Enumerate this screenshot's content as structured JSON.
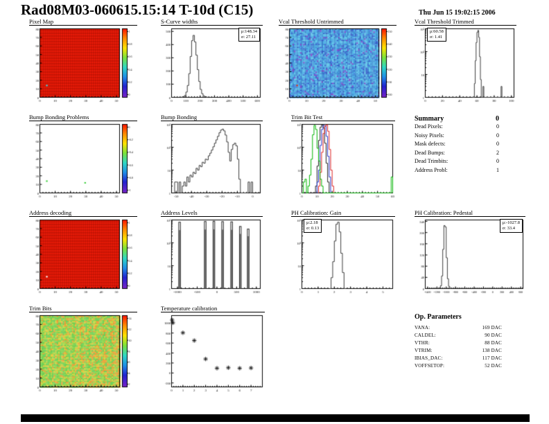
{
  "page": {
    "title": "Rad08M03-060615.15:14 T-10d (C15)",
    "timestamp": "Thu Jun 15 19:02:15 2006"
  },
  "summary": {
    "heading": "Summary",
    "value": "0",
    "rows": [
      {
        "label": "Dead Pixels:",
        "value": "0"
      },
      {
        "label": "Noisy Pixels:",
        "value": "0"
      },
      {
        "label": "Mask defects:",
        "value": "0"
      },
      {
        "label": "Dead Bumps:",
        "value": "2"
      },
      {
        "label": "Dead Trimbits:",
        "value": "0"
      },
      {
        "label": "Address Probl:",
        "value": "1"
      }
    ]
  },
  "op_parameters": {
    "heading": "Op. Parameters",
    "rows": [
      {
        "label": "VANA:",
        "value": "169 DAC"
      },
      {
        "label": "CALDEL:",
        "value": "90 DAC"
      },
      {
        "label": "VTHR:",
        "value": "88 DAC"
      },
      {
        "label": "VTRIM:",
        "value": "138 DAC"
      },
      {
        "label": "IBIAS_DAC:",
        "value": "117 DAC"
      },
      {
        "label": "VOFFSETOP:",
        "value": "52 DAC"
      }
    ]
  },
  "chart_data": [
    {
      "id": "pixel-map",
      "type": "heatmap",
      "title": "Pixel Map",
      "style": "red-grid",
      "cols": 52,
      "rows": 80,
      "xlim": [
        0,
        52
      ],
      "xticks": [
        "0",
        "10",
        "20",
        "30",
        "40",
        "50"
      ],
      "ylim": [
        0,
        80
      ],
      "yticks": [
        "0",
        "10",
        "20",
        "30",
        "40",
        "50",
        "60",
        "70",
        "80"
      ],
      "points": [
        {
          "x": 4,
          "y": 13,
          "color": "#3fd9e8"
        }
      ],
      "colorbar_ticks": [
        "1",
        "0.8",
        "0.6",
        "0.4",
        "0.2",
        "0"
      ]
    },
    {
      "id": "scurve-widths",
      "type": "histogram",
      "title": "S-Curve widths",
      "yscale": "linear",
      "ylim": [
        0,
        520
      ],
      "yticks": [
        "0",
        "100",
        "200",
        "300",
        "400",
        "500"
      ],
      "xlim": [
        0,
        620
      ],
      "xticks": [
        "0",
        "100",
        "200",
        "300",
        "400",
        "500",
        "600"
      ],
      "stats_mu": "μ:148.34",
      "stats_sigma": "σ: 27.11",
      "series": [
        {
          "color": "#3a3a3a",
          "x0": 70,
          "dx": 10,
          "values": [
            2,
            5,
            14,
            40,
            90,
            180,
            310,
            430,
            470,
            420,
            320,
            210,
            120,
            60,
            28,
            12,
            5,
            2
          ]
        }
      ]
    },
    {
      "id": "vcal-untrimmed",
      "type": "heatmap",
      "title": "Vcal Threshold Untrimmed",
      "style": "blue-noise",
      "cols": 52,
      "rows": 80,
      "xlim": [
        0,
        52
      ],
      "xticks": [
        "0",
        "10",
        "20",
        "30",
        "40",
        "50"
      ],
      "ylim": [
        0,
        80
      ],
      "yticks": [
        "0",
        "10",
        "20",
        "30",
        "40",
        "50",
        "60",
        "70",
        "80"
      ],
      "points": [
        {
          "x": 4,
          "y": 13,
          "color": "#ee3311"
        }
      ],
      "colorbar_ticks": [
        "150",
        "140",
        "130",
        "120",
        "110",
        "100"
      ]
    },
    {
      "id": "vcal-trimmed",
      "type": "histogram",
      "title": "Vcal Threshold Trimmed",
      "yscale": "log",
      "yticks": [
        "1",
        "10",
        "10²",
        "10³"
      ],
      "xlim": [
        0,
        103
      ],
      "xticks": [
        "0",
        "20",
        "40",
        "60",
        "80",
        "100"
      ],
      "stats_mu": "μ:60.58",
      "stats_sigma": "σ: 1.41",
      "series": [
        {
          "color": "#3a3a3a",
          "x0": 55,
          "dx": 1,
          "values": [
            1,
            0,
            4,
            40,
            250,
            700,
            850,
            420,
            60,
            6,
            0,
            0,
            3,
            0,
            0,
            0,
            0,
            0,
            0,
            0,
            0,
            0,
            0,
            0,
            0,
            0,
            0,
            0,
            0,
            0,
            0,
            0,
            0,
            3,
            0,
            0,
            0,
            0,
            0,
            0,
            0,
            0,
            1
          ]
        }
      ]
    },
    {
      "id": "bump-problems",
      "type": "heatmap",
      "title": "Bump Bonding Problems",
      "style": "empty",
      "cols": 52,
      "rows": 80,
      "xlim": [
        0,
        52
      ],
      "xticks": [
        "0",
        "10",
        "20",
        "30",
        "40",
        "50"
      ],
      "ylim": [
        0,
        80
      ],
      "yticks": [
        "0",
        "10",
        "20",
        "30",
        "40",
        "50",
        "60",
        "70",
        "80"
      ],
      "points": [
        {
          "x": 4,
          "y": 13,
          "color": "#3ecf3e"
        },
        {
          "x": 29,
          "y": 11,
          "color": "#3ecf3e"
        }
      ],
      "colorbar_ticks": [
        "0",
        "-0.2",
        "-0.4",
        "-0.6",
        "-0.8",
        "-1"
      ]
    },
    {
      "id": "bump-bonding",
      "type": "histogram",
      "title": "Bump Bonding",
      "yscale": "log",
      "yticks": [
        "1",
        "10",
        "10²",
        "10³"
      ],
      "xlim": [
        -53,
        5
      ],
      "xticks": [
        "-50",
        "-40",
        "-30",
        "-20",
        "-10",
        "0"
      ],
      "series": [
        {
          "color": "#3a3a3a",
          "x0": -51,
          "dx": 1,
          "values": [
            3,
            3,
            0,
            3,
            0,
            2,
            3,
            2,
            5,
            3,
            6,
            5,
            8,
            7,
            12,
            10,
            16,
            14,
            22,
            20,
            30,
            28,
            42,
            55,
            75,
            105,
            150,
            210,
            300,
            430,
            560,
            620,
            520,
            340,
            170,
            60,
            25,
            80,
            130,
            150,
            115,
            30,
            4,
            0,
            0,
            0,
            0,
            0,
            3,
            0,
            3
          ]
        }
      ]
    },
    {
      "id": "trimbit-test",
      "type": "histogram",
      "title": "Trim Bit Test",
      "yscale": "log",
      "yticks": [
        "1",
        "10",
        "10²",
        "10³"
      ],
      "xlim": [
        0,
        60
      ],
      "xticks": [
        "0",
        "10",
        "20",
        "30",
        "40",
        "50",
        "60"
      ],
      "series": [
        {
          "color": "#222222",
          "x0": 9,
          "dx": 1,
          "values": [
            2,
            15,
            200,
            750,
            950,
            700,
            150,
            20,
            3
          ]
        },
        {
          "color": "#2233cc",
          "x0": 10,
          "dx": 1,
          "values": [
            3,
            10,
            120,
            600,
            900,
            850,
            300,
            40,
            5
          ]
        },
        {
          "color": "#dd2222",
          "x0": 11,
          "dx": 1,
          "values": [
            2,
            8,
            60,
            400,
            850,
            950,
            500,
            80,
            10,
            2
          ]
        },
        {
          "color": "#00b400",
          "x0": 0,
          "dx": 1,
          "values": [
            0,
            3,
            4,
            0,
            2,
            6,
            30,
            350,
            900,
            600,
            90,
            25,
            4,
            2,
            0,
            0,
            0,
            0,
            0,
            0,
            0,
            0,
            0,
            0,
            0,
            0,
            0,
            0,
            0,
            0,
            0,
            0,
            0,
            0,
            0,
            0,
            0,
            0,
            0,
            0,
            0,
            0,
            0,
            0,
            0,
            0,
            0,
            0,
            0,
            0,
            0,
            0,
            0,
            0,
            0,
            0,
            0,
            0,
            0,
            5
          ]
        }
      ]
    },
    {
      "id": "addr-decoding",
      "type": "heatmap",
      "title": "Address decoding",
      "style": "red-grid",
      "cols": 52,
      "rows": 80,
      "xlim": [
        0,
        52
      ],
      "xticks": [
        "0",
        "10",
        "20",
        "30",
        "40",
        "50"
      ],
      "ylim": [
        0,
        80
      ],
      "yticks": [
        "0",
        "10",
        "20",
        "30",
        "40",
        "50",
        "60",
        "70",
        "80"
      ],
      "points": [
        {
          "x": 4,
          "y": 13,
          "color": "#ffffff"
        }
      ],
      "colorbar_ticks": [
        "1",
        "0.8",
        "0.6",
        "0.4",
        "0.2",
        "0"
      ]
    },
    {
      "id": "addr-levels",
      "type": "spikes",
      "title": "Address Levels",
      "yscale": "log",
      "yticks": [
        "1",
        "10",
        "10²",
        "10³"
      ],
      "xlim": [
        -1150,
        1100
      ],
      "xticks": [
        "-1000",
        "-500",
        "0",
        "500",
        "1000"
      ],
      "spikes": [
        {
          "x": -950,
          "v": 800
        },
        {
          "x": -300,
          "v": 860
        },
        {
          "x": -80,
          "v": 880
        },
        {
          "x": 140,
          "v": 850
        },
        {
          "x": 370,
          "v": 830
        },
        {
          "x": 590,
          "v": 520
        },
        {
          "x": 790,
          "v": 400
        }
      ]
    },
    {
      "id": "ph-gain",
      "type": "histogram",
      "title": "PH Calibration: Gain",
      "yscale": "log",
      "yticks": [
        "1",
        "10",
        "10²",
        "10³"
      ],
      "xlim": [
        0,
        5.6
      ],
      "xticks": [
        "0",
        "1",
        "2",
        "3",
        "4",
        "5"
      ],
      "stats_mu": "μ:2.18",
      "stats_sigma": "σ: 0.13",
      "series": [
        {
          "color": "#3a3a3a",
          "x0": 1.7,
          "dx": 0.1,
          "values": [
            1,
            3,
            15,
            120,
            650,
            800,
            300,
            35,
            5,
            1
          ]
        }
      ]
    },
    {
      "id": "ph-pedestal",
      "type": "histogram",
      "title": "PH Calibration: Pedestal",
      "yscale": "linear",
      "ylim": [
        0,
        245
      ],
      "yticks": [
        "0",
        "40",
        "80",
        "120",
        "160",
        "200",
        "240"
      ],
      "xlim": [
        -1450,
        650
      ],
      "xticks": [
        "-1400",
        "-1200",
        "-1000",
        "-800",
        "-600",
        "-400",
        "-200",
        "0",
        "200",
        "400",
        "600"
      ],
      "stats_mu": "μ:-1027.8",
      "stats_sigma": "σ: 33.4",
      "series": [
        {
          "color": "#3a3a3a",
          "x0": -1150,
          "dx": 25,
          "values": [
            2,
            10,
            45,
            140,
            225,
            220,
            110,
            35,
            8,
            1
          ]
        }
      ]
    },
    {
      "id": "trim-bits",
      "type": "heatmap",
      "title": "Trim Bits",
      "style": "trim-noise",
      "cols": 52,
      "rows": 80,
      "xlim": [
        0,
        52
      ],
      "xticks": [
        "0",
        "10",
        "20",
        "30",
        "40",
        "50"
      ],
      "ylim": [
        0,
        80
      ],
      "yticks": [
        "0",
        "10",
        "20",
        "30",
        "40",
        "50",
        "60",
        "70",
        "80"
      ],
      "points": [],
      "colorbar_ticks": [
        "14",
        "12",
        "10",
        "8",
        "6",
        "4",
        "2"
      ]
    },
    {
      "id": "temp-cal",
      "type": "scatter",
      "title": "Temperature calibration",
      "xlim": [
        0,
        8
      ],
      "xticks": [
        "0",
        "1",
        "2",
        "3",
        "4",
        "5",
        "6",
        "7"
      ],
      "ylim": [
        -280,
        1150
      ],
      "yticks": [
        "-200",
        "0",
        "200",
        "400",
        "600",
        "800",
        "1000"
      ],
      "points": [
        [
          0.05,
          1060
        ],
        [
          0.12,
          1005
        ],
        [
          1,
          805
        ],
        [
          2,
          650
        ],
        [
          3,
          280
        ],
        [
          4,
          95
        ],
        [
          5,
          105
        ],
        [
          6,
          95
        ],
        [
          7,
          100
        ]
      ]
    }
  ]
}
